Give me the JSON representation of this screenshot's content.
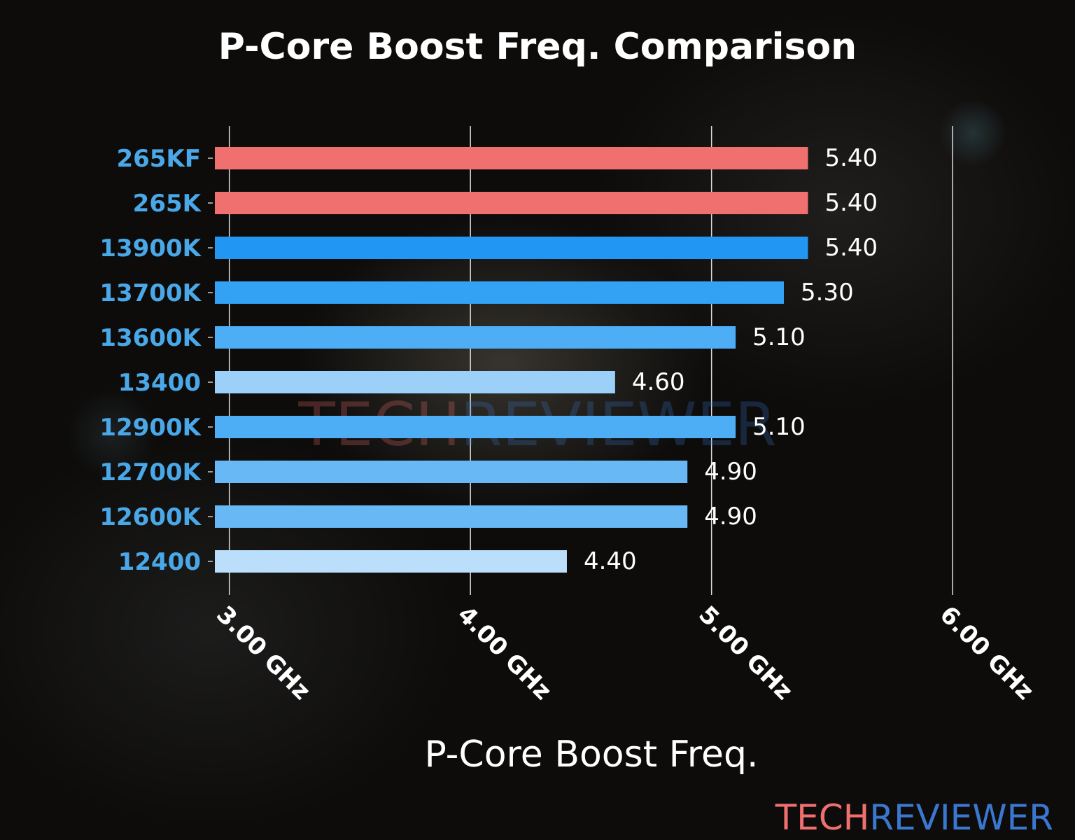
{
  "chart_data": {
    "type": "bar",
    "orientation": "horizontal",
    "title": "P-Core Boost Freq. Comparison",
    "xlabel": "P-Core Boost Freq.",
    "ylabel": "",
    "categories": [
      "265KF",
      "265K",
      "13900K",
      "13700K",
      "13600K",
      "13400",
      "12900K",
      "12700K",
      "12600K",
      "12400"
    ],
    "values": [
      5.4,
      5.4,
      5.4,
      5.3,
      5.1,
      4.6,
      5.1,
      4.9,
      4.9,
      4.4
    ],
    "value_labels": [
      "5.40",
      "5.40",
      "5.40",
      "5.30",
      "5.10",
      "4.60",
      "5.10",
      "4.90",
      "4.90",
      "4.40"
    ],
    "bar_colors": [
      "#f07070",
      "#f07070",
      "#2196f3",
      "#33a1f4",
      "#4dadf5",
      "#9dd0f9",
      "#4dadf5",
      "#69b8f6",
      "#69b8f6",
      "#bbdefb"
    ],
    "xticks": [
      3,
      4,
      5,
      6
    ],
    "xtick_labels": [
      "3.00 GHz",
      "4.00 GHz",
      "5.00 GHz",
      "6.00 GHz"
    ],
    "xlim": [
      2.94,
      6.0
    ],
    "grid": "vertical",
    "label_color": "#4aa8e8"
  },
  "watermark": {
    "part1": "TECH",
    "part2": "REVIEWER",
    "color1": "#f07070",
    "color2": "#3a78d0"
  }
}
